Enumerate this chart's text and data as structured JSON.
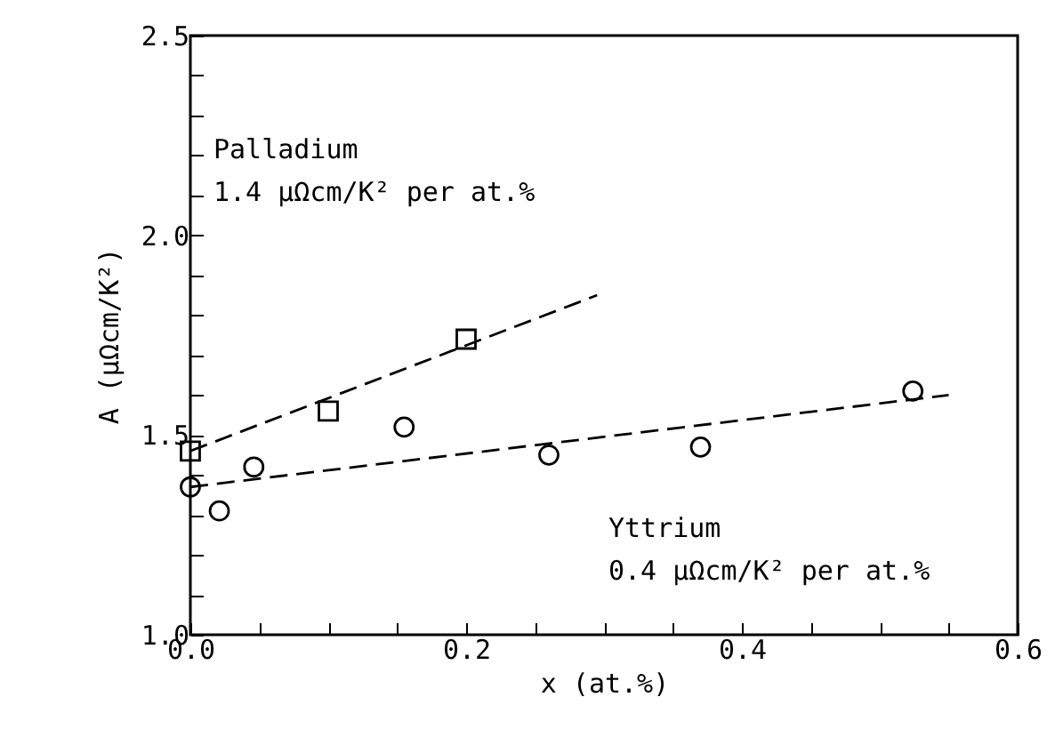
{
  "chart_data": {
    "type": "scatter",
    "xlabel": "x    (at.%)",
    "ylabel": "A  (μΩcm/K²)",
    "xlim": [
      0,
      0.6
    ],
    "ylim": [
      1.0,
      2.5
    ],
    "xticks": [
      {
        "value": 0,
        "label": "0.0"
      },
      {
        "value": 0.05,
        "label": null
      },
      {
        "value": 0.1,
        "label": null
      },
      {
        "value": 0.15,
        "label": null
      },
      {
        "value": 0.2,
        "label": "0.2"
      },
      {
        "value": 0.25,
        "label": null
      },
      {
        "value": 0.3,
        "label": null
      },
      {
        "value": 0.35,
        "label": null
      },
      {
        "value": 0.4,
        "label": "0.4"
      },
      {
        "value": 0.45,
        "label": null
      },
      {
        "value": 0.5,
        "label": null
      },
      {
        "value": 0.55,
        "label": null
      },
      {
        "value": 0.6,
        "label": "0.6"
      }
    ],
    "yticks": [
      {
        "value": 1.0,
        "label": "1.0"
      },
      {
        "value": 1.1,
        "label": null
      },
      {
        "value": 1.2,
        "label": null
      },
      {
        "value": 1.3,
        "label": null
      },
      {
        "value": 1.4,
        "label": null
      },
      {
        "value": 1.5,
        "label": "1.5"
      },
      {
        "value": 1.6,
        "label": null
      },
      {
        "value": 1.7,
        "label": null
      },
      {
        "value": 1.8,
        "label": null
      },
      {
        "value": 1.9,
        "label": null
      },
      {
        "value": 2.0,
        "label": "2.0"
      },
      {
        "value": 2.1,
        "label": null
      },
      {
        "value": 2.2,
        "label": null
      },
      {
        "value": 2.3,
        "label": null
      },
      {
        "value": 2.4,
        "label": null
      },
      {
        "value": 2.5,
        "label": "2.5"
      }
    ],
    "grid": false,
    "series": [
      {
        "marker": "square",
        "color": "#000000",
        "x": [
          0,
          0.1,
          0.2
        ],
        "values": [
          1.46,
          1.56,
          1.74
        ]
      },
      {
        "marker": "circle",
        "color": "#000000",
        "x": [
          0,
          0.021,
          0.046,
          0.155,
          0.26,
          0.37,
          0.524
        ],
        "values": [
          1.37,
          1.31,
          1.42,
          1.52,
          1.45,
          1.47,
          1.61
        ]
      },
      {
        "type": "line",
        "line_style": "dashed",
        "color": "#000000",
        "x": [
          0,
          0.295
        ],
        "values": [
          1.46,
          1.85
        ]
      },
      {
        "type": "line",
        "line_style": "dashed",
        "color": "#000000",
        "x": [
          0,
          0.55
        ],
        "values": [
          1.37,
          1.6
        ]
      }
    ],
    "annotations": [
      "Palladium",
      "1.4 μΩcm/K² per at.%",
      "Yttrium",
      "0.4 μΩcm/K² per at.%"
    ]
  }
}
